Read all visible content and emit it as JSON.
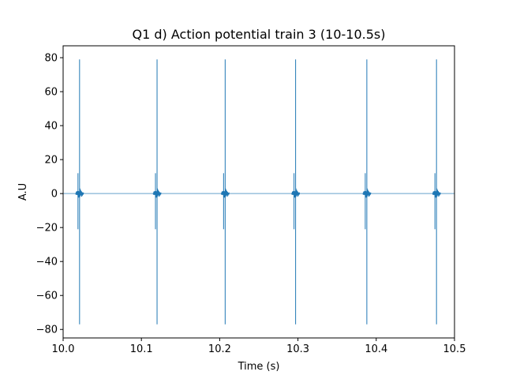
{
  "chart_data": {
    "type": "line",
    "title": "Q1 d) Action potential train 3 (10-10.5s)",
    "xlabel": "Time (s)",
    "ylabel": "A.U",
    "xlim": [
      10.0,
      10.5
    ],
    "ylim": [
      -85,
      87
    ],
    "xticks": [
      "10.0",
      "10.1",
      "10.2",
      "10.3",
      "10.4",
      "10.5"
    ],
    "yticks": [
      "80",
      "60",
      "40",
      "20",
      "0",
      "−20",
      "−40",
      "−60",
      "−80"
    ],
    "grid": false,
    "legend": "none",
    "color": "#1f77b4",
    "baseline": 0,
    "spikes": [
      {
        "t": 10.021,
        "peak": 79,
        "trough": -77
      },
      {
        "t": 10.12,
        "peak": 79,
        "trough": -77
      },
      {
        "t": 10.207,
        "peak": 79,
        "trough": -77
      },
      {
        "t": 10.297,
        "peak": 79,
        "trough": -77
      },
      {
        "t": 10.388,
        "peak": 79,
        "trough": -77
      },
      {
        "t": 10.477,
        "peak": 79,
        "trough": -77
      }
    ]
  }
}
